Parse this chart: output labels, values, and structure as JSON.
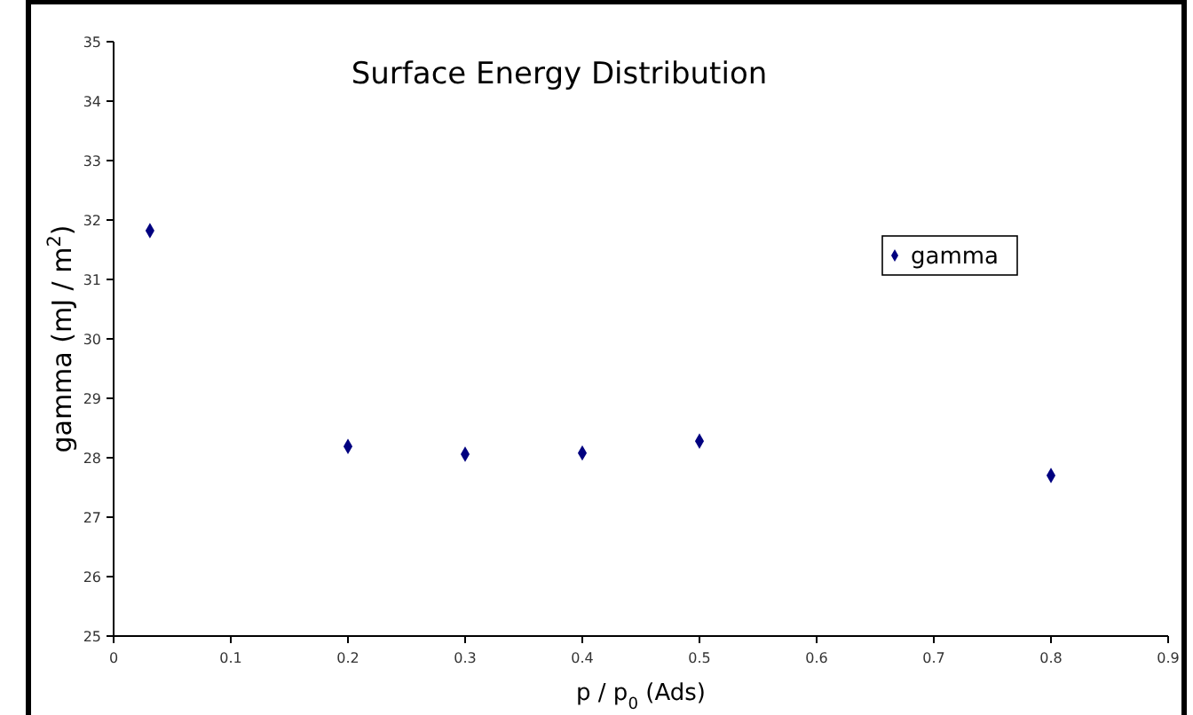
{
  "chart_data": {
    "type": "scatter",
    "title": "Surface Energy Distribution",
    "xlabel": "p / p$_{0}$ (Ads)",
    "ylabel": "gamma (mJ / m$^{2}$)",
    "x": [
      0.031,
      0.2,
      0.3,
      0.4,
      0.5,
      0.8
    ],
    "series": [
      {
        "name": "gamma",
        "color": "#000080",
        "values": [
          31.82,
          28.19,
          28.06,
          28.08,
          28.28,
          27.7
        ]
      }
    ],
    "xlim": [
      0,
      0.9
    ],
    "xticks": [
      0,
      0.1,
      0.2,
      0.3,
      0.4,
      0.5,
      0.6,
      0.7,
      0.8,
      0.9
    ],
    "ylim": [
      25,
      35
    ],
    "yticks": [
      25,
      26,
      27,
      28,
      29,
      30,
      31,
      32,
      33,
      34,
      35
    ],
    "marker": "diamond",
    "legend": "top right",
    "grid": false
  }
}
